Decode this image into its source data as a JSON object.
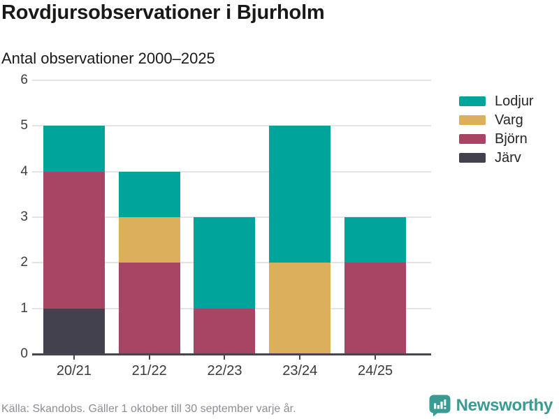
{
  "header": {
    "title": "Rovdjursobservationer i Bjurholm",
    "subtitle": "Antal observationer 2000–2025"
  },
  "chart_data": {
    "type": "bar",
    "stacked": true,
    "categories": [
      "20/21",
      "21/22",
      "22/23",
      "23/24",
      "24/25"
    ],
    "series": [
      {
        "name": "Lodjur",
        "color": "#00a49a",
        "values": [
          1,
          1,
          2,
          3,
          1
        ]
      },
      {
        "name": "Varg",
        "color": "#dcb05a",
        "values": [
          0,
          1,
          0,
          2,
          0
        ]
      },
      {
        "name": "Björn",
        "color": "#a84565",
        "values": [
          3,
          2,
          1,
          0,
          2
        ]
      },
      {
        "name": "Järv",
        "color": "#44414f",
        "values": [
          1,
          0,
          0,
          0,
          0
        ]
      }
    ],
    "stack_order_bottom_to_top": [
      "Järv",
      "Björn",
      "Varg",
      "Lodjur"
    ],
    "ylim": [
      0,
      6
    ],
    "yticks": [
      0,
      1,
      2,
      3,
      4,
      5,
      6
    ],
    "grid": true,
    "legend_position": "right"
  },
  "footer": {
    "source": "Källa: Skandobs. Gäller 1 oktober till 30 september varje år.",
    "brand": "Newsworthy",
    "brand_color": "#3a9a94"
  },
  "icons": {
    "brand_icon": "newsworthy-bubble-barchart-icon"
  },
  "colors": {
    "gridline": "#e4e4e4",
    "axis": "#46444c",
    "title_text": "#191917",
    "tick_text": "#3a3a3a",
    "source_text": "#8d8d95"
  }
}
